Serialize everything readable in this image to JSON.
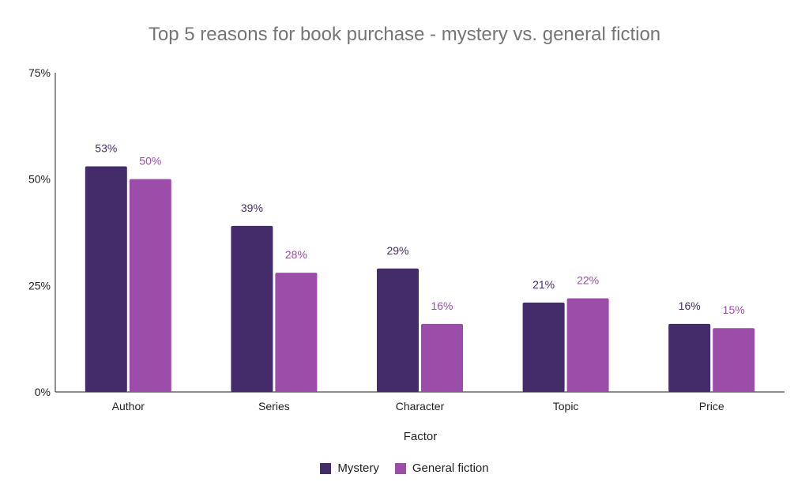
{
  "chart_data": {
    "type": "bar",
    "title": "Top 5 reasons for book purchase - mystery vs. general fiction",
    "xlabel": "Factor",
    "ylabel": "",
    "categories": [
      "Author",
      "Series",
      "Character",
      "Topic",
      "Price"
    ],
    "series": [
      {
        "name": "Mystery",
        "values": [
          53,
          39,
          29,
          21,
          16
        ],
        "labels": [
          "53%",
          "39%",
          "29%",
          "21%",
          "16%"
        ],
        "color": "#432c69"
      },
      {
        "name": "General fiction",
        "values": [
          50,
          28,
          16,
          22,
          15
        ],
        "labels": [
          "50%",
          "28%",
          "16%",
          "22%",
          "15%"
        ],
        "color": "#9c4daa"
      }
    ],
    "ylim": [
      0,
      75
    ],
    "yticks": [
      {
        "value": 0,
        "label": "0%"
      },
      {
        "value": 25,
        "label": "25%"
      },
      {
        "value": 50,
        "label": "50%"
      },
      {
        "value": 75,
        "label": "75%"
      }
    ],
    "grid": false,
    "legend_position": "bottom"
  }
}
